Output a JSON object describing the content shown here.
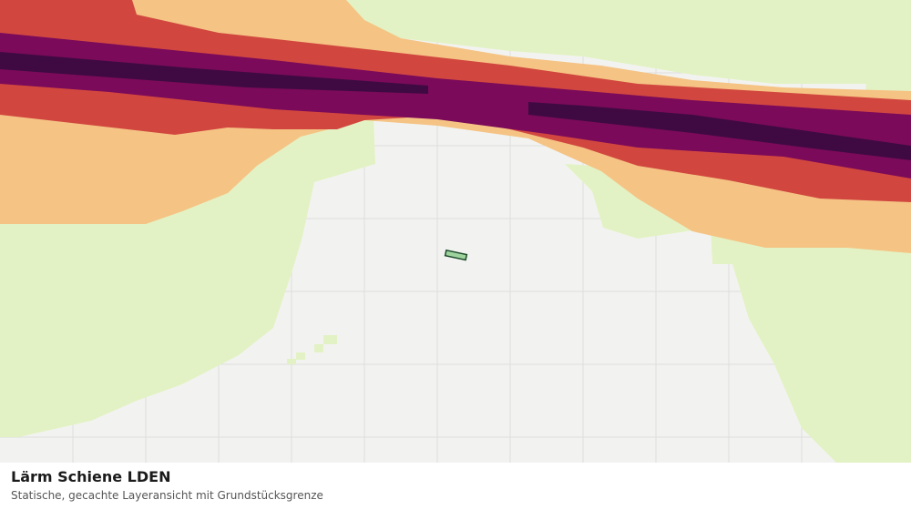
{
  "title": "Lärm Schiene LDEN",
  "subtitle": "Statische, gecachte Layeransicht mit Grundstücksgrenze"
}
